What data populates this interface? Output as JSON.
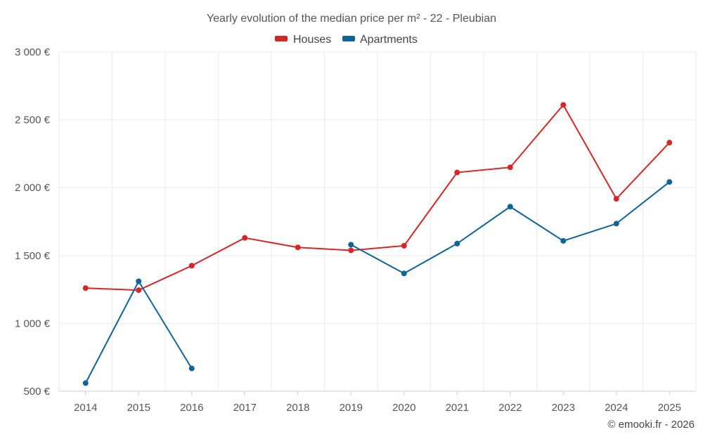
{
  "chart_data": {
    "type": "line",
    "title": "Yearly evolution of the median price per m² - 22 - Pleubian",
    "categories": [
      "2014",
      "2015",
      "2016",
      "2017",
      "2018",
      "2019",
      "2020",
      "2021",
      "2022",
      "2023",
      "2024",
      "2025"
    ],
    "series": [
      {
        "name": "Houses",
        "color": "#d62728",
        "values": [
          1260,
          1245,
          1425,
          1630,
          1560,
          1538,
          1572,
          2112,
          2150,
          2610,
          1918,
          2332
        ]
      },
      {
        "name": "Apartments",
        "color": "#0e6496",
        "values": [
          560,
          1310,
          668,
          null,
          null,
          1580,
          1368,
          1588,
          1860,
          1608,
          1735,
          2042
        ]
      }
    ],
    "y_ticks": [
      500,
      1000,
      1500,
      2000,
      2500,
      3000
    ],
    "y_tick_labels": [
      "500 €",
      "1 000 €",
      "1 500 €",
      "2 000 €",
      "2 500 €",
      "3 000 €"
    ],
    "ylim": [
      500,
      3000
    ],
    "grid": true,
    "legend_position": "top-center",
    "xlabel": "",
    "ylabel": ""
  },
  "credit": "© emooki.fr - 2026"
}
